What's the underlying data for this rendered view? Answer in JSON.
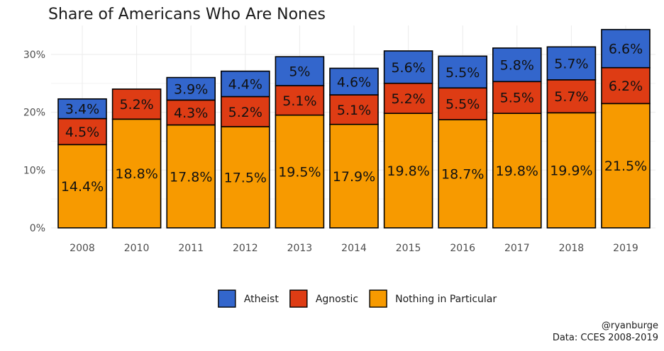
{
  "chart_data": {
    "type": "bar",
    "stacked": true,
    "title": "Share of Americans Who Are Nones",
    "xlabel": "",
    "ylabel": "",
    "ylim": [
      0,
      35
    ],
    "yticks": [
      0,
      10,
      20,
      30
    ],
    "ytick_labels": [
      "0%",
      "10%",
      "20%",
      "30%"
    ],
    "grid": true,
    "legend_position": "bottom",
    "categories": [
      "2008",
      "2010",
      "2011",
      "2012",
      "2013",
      "2014",
      "2015",
      "2016",
      "2017",
      "2018",
      "2019"
    ],
    "series": [
      {
        "name": "Nothing in Particular",
        "color": "#f79a00",
        "values": [
          14.4,
          18.8,
          17.8,
          17.5,
          19.5,
          17.9,
          19.8,
          18.7,
          19.8,
          19.9,
          21.5
        ],
        "labels": [
          "14.4%",
          "18.8%",
          "17.8%",
          "17.5%",
          "19.5%",
          "17.9%",
          "19.8%",
          "18.7%",
          "19.8%",
          "19.9%",
          "21.5%"
        ]
      },
      {
        "name": "Agnostic",
        "color": "#de3c14",
        "values": [
          4.5,
          5.2,
          4.3,
          5.2,
          5.1,
          5.1,
          5.2,
          5.5,
          5.5,
          5.7,
          6.2
        ],
        "labels": [
          "4.5%",
          "5.2%",
          "4.3%",
          "5.2%",
          "5.1%",
          "5.1%",
          "5.2%",
          "5.5%",
          "5.5%",
          "5.7%",
          "6.2%"
        ]
      },
      {
        "name": "Atheist",
        "color": "#3366cc",
        "values": [
          3.4,
          0,
          3.9,
          4.4,
          5,
          4.6,
          5.6,
          5.5,
          5.8,
          5.7,
          6.6
        ],
        "labels": [
          "3.4%",
          "",
          "3.9%",
          "4.4%",
          "5%",
          "4.6%",
          "5.6%",
          "5.5%",
          "5.8%",
          "5.7%",
          "6.6%"
        ]
      }
    ],
    "legend_order": [
      "Atheist",
      "Agnostic",
      "Nothing in Particular"
    ],
    "caption": [
      "@ryanburge",
      "Data: CCES 2008-2019"
    ]
  }
}
